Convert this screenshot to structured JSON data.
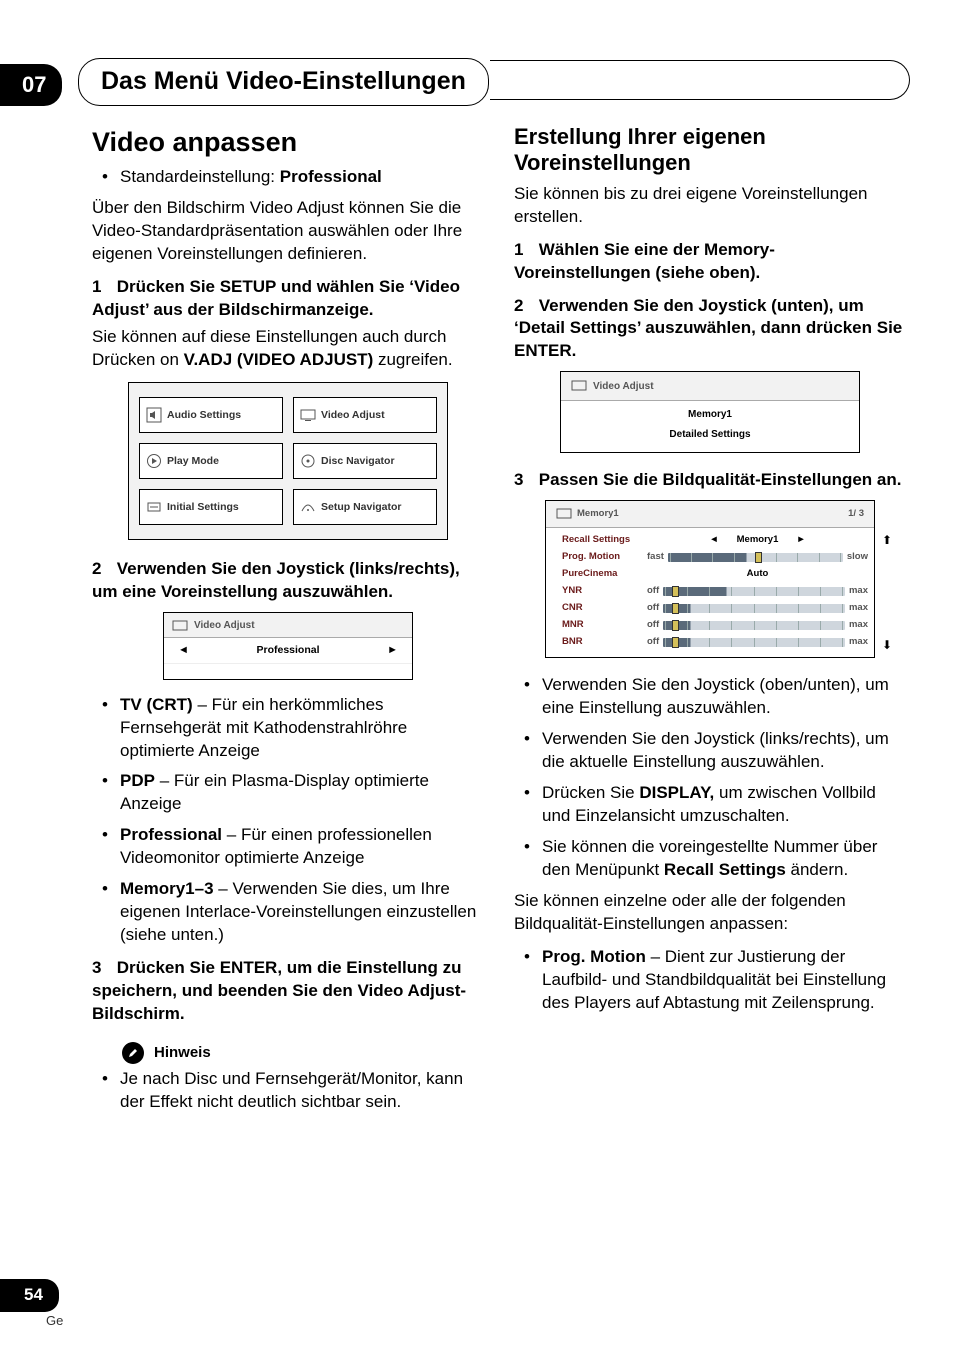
{
  "chapter": {
    "number": "07",
    "title": "Das Menü Video-Einstellungen"
  },
  "page": {
    "number": "54",
    "lang": "Ge"
  },
  "left": {
    "h1": "Video anpassen",
    "default_label": "Standardeinstellung: ",
    "default_value": "Professional",
    "intro": "Über den Bildschirm Video Adjust können Sie die Video-Standardpräsentation auswählen oder Ihre eigenen Voreinstellungen definieren.",
    "step1_num": "1",
    "step1_bold": "Drücken Sie SETUP und wählen Sie ‘Video Adjust’ aus der Bildschirmanzeige.",
    "step1_text_a": "Sie können auf diese Einstellungen auch durch Drücken on ",
    "step1_text_b": "V.ADJ (VIDEO ADJUST)",
    "step1_text_c": " zugreifen.",
    "menu": {
      "audio": "Audio Settings",
      "video": "Video Adjust",
      "play": "Play Mode",
      "disc": "Disc Navigator",
      "initial": "Initial Settings",
      "setupnav": "Setup Navigator"
    },
    "step2_num": "2",
    "step2_bold": "Verwenden Sie den Joystick (links/rechts), um eine Voreinstellung auszuwählen.",
    "va_small": {
      "title": "Video Adjust",
      "value": "Professional"
    },
    "opts": {
      "tv_b": "TV (CRT)",
      "tv_t": " – Für ein herkömmliches Fernsehgerät mit Kathodenstrahlröhre optimierte Anzeige",
      "pdp_b": "PDP",
      "pdp_t": " – Für ein Plasma-Display optimierte Anzeige",
      "pro_b": "Professional",
      "pro_t": " – Für einen professionellen Videomonitor optimierte Anzeige",
      "mem_b": "Memory1–3",
      "mem_t": " – Verwenden Sie dies, um Ihre eigenen Interlace-Voreinstellungen einzustellen (siehe unten.)"
    },
    "step3_num": "3",
    "step3_bold": "Drücken Sie ENTER, um die Einstellung zu speichern, und beenden Sie den Video Adjust-Bildschirm.",
    "note_label": "Hinweis",
    "note_text": "Je nach Disc und Fernsehgerät/Monitor, kann der Effekt nicht deutlich sichtbar sein."
  },
  "right": {
    "h2": "Erstellung Ihrer eigenen Voreinstellungen",
    "intro": "Sie können bis zu drei eigene Voreinstellungen erstellen.",
    "step1_num": "1",
    "step1_bold": "Wählen Sie eine der Memory-Voreinstellungen (siehe oben).",
    "step2_num": "2",
    "step2_bold": "Verwenden Sie den Joystick (unten), um ‘Detail Settings’ auszuwählen, dann drücken Sie ENTER.",
    "va_mem": {
      "title": "Video Adjust",
      "line1": "Memory1",
      "line2": "Detailed Settings"
    },
    "step3_num": "3",
    "step3_bold": "Passen Sie die Bildqualität-Einstellungen an.",
    "memtable": {
      "title": "Memory1",
      "page": "1/ 3",
      "rows": [
        {
          "label": "Recall Settings",
          "type": "select",
          "value": "Memory1"
        },
        {
          "label": "Prog. Motion",
          "type": "slider",
          "left": "fast",
          "right": "slow",
          "pos": 0.5,
          "fill": 0.45
        },
        {
          "label": "PureCinema",
          "type": "text",
          "value": "Auto"
        },
        {
          "label": "YNR",
          "type": "slider",
          "left": "off",
          "right": "max",
          "pos": 0.05,
          "fill": 0.35
        },
        {
          "label": "CNR",
          "type": "slider",
          "left": "off",
          "right": "max",
          "pos": 0.05,
          "fill": 0.15
        },
        {
          "label": "MNR",
          "type": "slider",
          "left": "off",
          "right": "max",
          "pos": 0.05,
          "fill": 0.15
        },
        {
          "label": "BNR",
          "type": "slider",
          "left": "off",
          "right": "max",
          "pos": 0.05,
          "fill": 0.15
        }
      ]
    },
    "bul": {
      "b1": "Verwenden Sie den Joystick (oben/unten), um eine Einstellung auszuwählen.",
      "b2": "Verwenden Sie den Joystick (links/rechts), um die aktuelle Einstellung auszuwählen.",
      "b3a": "Drücken Sie ",
      "b3b": "DISPLAY,",
      "b3c": " um zwischen Vollbild und Einzelansicht umzuschalten.",
      "b4a": "Sie können die voreingestellte Nummer über den Menüpunkt ",
      "b4b": "Recall Settings",
      "b4c": " ändern."
    },
    "tail": "Sie können einzelne oder alle der folgenden Bildqualität-Einstellungen anpassen:",
    "prog_b": "Prog. Motion",
    "prog_t": " – Dient zur Justierung der Laufbild- und Standbildqualität bei Einstellung des Players auf Abtastung mit Zeilensprung."
  },
  "colors": {
    "slider_bg": "#5a6a7a",
    "knob": "#d4c05a",
    "row_label": "#6a1a1a"
  }
}
